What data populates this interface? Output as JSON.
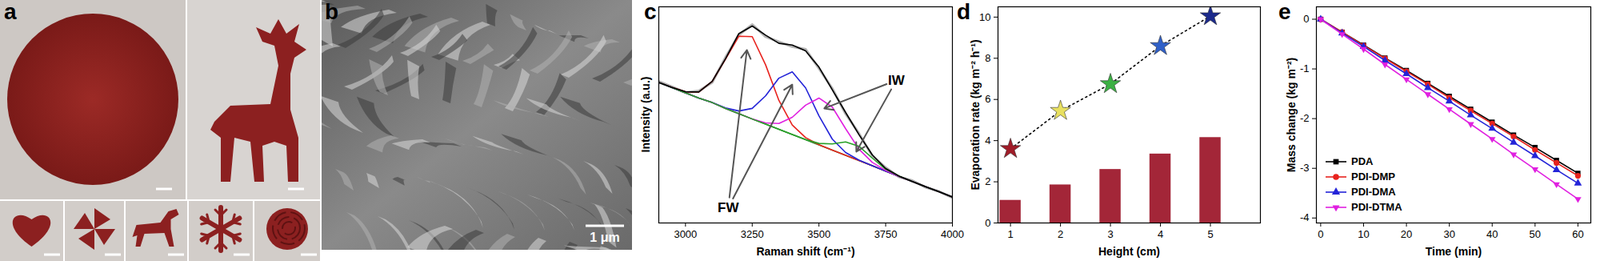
{
  "images": [
    {
      "title": "a"
    },
    {
      "title": "b",
      "scale_bar_label": "1 μm"
    }
  ],
  "chart_data": [
    {
      "title": "c",
      "type": "line",
      "x_label": "Raman shift (cm⁻¹)",
      "y_label": "Intensity (a.u.)",
      "x": [
        2900,
        2950,
        3000,
        3050,
        3100,
        3150,
        3200,
        3250,
        3300,
        3350,
        3400,
        3450,
        3500,
        3550,
        3600,
        3650,
        3700,
        3750,
        3800,
        3850,
        3900,
        3950,
        4000
      ],
      "xlim": [
        2900,
        4000
      ],
      "xticks": [
        3000,
        3250,
        3500,
        3750,
        4000
      ],
      "ylim": [
        0,
        1
      ],
      "tick_labels": "x",
      "series": [
        {
          "color": "#b3b3b3",
          "values": [
            0.655,
            0.63,
            0.603,
            0.611,
            0.65,
            0.766,
            0.87,
            0.918,
            0.862,
            0.838,
            0.816,
            0.803,
            0.715,
            0.622,
            0.505,
            0.414,
            0.31,
            0.256,
            0.213,
            0.196,
            0.165,
            0.146,
            0.117
          ]
        },
        {
          "color": "#2e8b2e",
          "values": [
            0.65,
            0.626,
            0.602,
            0.578,
            0.557,
            0.53,
            0.506,
            0.481,
            0.457,
            0.433,
            0.409,
            0.385,
            0.361,
            0.337,
            0.313,
            0.289,
            0.265,
            0.24,
            0.216,
            0.192,
            0.168,
            0.144,
            0.12
          ]
        },
        {
          "color": "#e8231e",
          "values": [
            0.65,
            0.627,
            0.607,
            0.606,
            0.655,
            0.758,
            0.864,
            0.862,
            0.732,
            0.567,
            0.453,
            0.395,
            0.362,
            0.337,
            0.313,
            0.289,
            0.265,
            0.24,
            0.216,
            0.192,
            0.168,
            0.144,
            0.12
          ]
        },
        {
          "color": "#2424d8",
          "values": [
            0.65,
            0.626,
            0.602,
            0.578,
            0.557,
            0.532,
            0.518,
            0.53,
            0.588,
            0.67,
            0.699,
            0.625,
            0.496,
            0.388,
            0.326,
            0.291,
            0.265,
            0.24,
            0.216,
            0.192,
            0.168,
            0.144,
            0.12
          ]
        },
        {
          "color": "#e020e0",
          "values": [
            0.65,
            0.626,
            0.602,
            0.578,
            0.557,
            0.53,
            0.506,
            0.481,
            0.463,
            0.46,
            0.489,
            0.545,
            0.578,
            0.536,
            0.436,
            0.341,
            0.28,
            0.243,
            0.216,
            0.192,
            0.168,
            0.144,
            0.12
          ]
        },
        {
          "color": "#28a028",
          "values": [
            0.65,
            0.626,
            0.602,
            0.578,
            0.557,
            0.53,
            0.506,
            0.481,
            0.457,
            0.433,
            0.409,
            0.386,
            0.368,
            0.366,
            0.375,
            0.355,
            0.3,
            0.249,
            0.217,
            0.192,
            0.168,
            0.144,
            0.12
          ]
        },
        {
          "color": "#000000",
          "values": [
            0.65,
            0.627,
            0.607,
            0.606,
            0.655,
            0.76,
            0.876,
            0.911,
            0.869,
            0.831,
            0.823,
            0.796,
            0.721,
            0.616,
            0.511,
            0.409,
            0.315,
            0.252,
            0.217,
            0.192,
            0.168,
            0.144,
            0.12
          ]
        }
      ],
      "annotations": [
        {
          "text": "FW",
          "x": 3160,
          "y": 0.07,
          "arrows": [
            {
              "x": 3230,
              "y": 0.8
            },
            {
              "x": 3400,
              "y": 0.64
            }
          ]
        },
        {
          "text": "IW",
          "x": 3790,
          "y": 0.66,
          "arrows": [
            {
              "x": 3520,
              "y": 0.53
            },
            {
              "x": 3640,
              "y": 0.33
            }
          ]
        }
      ]
    },
    {
      "title": "d",
      "type": "bar",
      "x_label": "Height (cm)",
      "y_label": "Evaporation rate (kg m⁻² h⁻¹)",
      "x": [
        1,
        2,
        3,
        4,
        5
      ],
      "xlim": [
        0.75,
        6
      ],
      "xticks": [
        1,
        2,
        3,
        4,
        5
      ],
      "ylim": [
        0,
        10.5
      ],
      "yticks": [
        0,
        2,
        4,
        6,
        8,
        10
      ],
      "series": [
        {
          "type": "bar",
          "color": "#a32638",
          "values": [
            1.1,
            1.85,
            2.6,
            3.35,
            4.15
          ]
        },
        {
          "type": "line",
          "marker": "star",
          "line_style": "dotted",
          "color": "#000000",
          "colors": [
            "#a01c28",
            "#e8e060",
            "#3cb043",
            "#3060c8",
            "#1c2a8c"
          ],
          "values": [
            3.6,
            5.45,
            6.75,
            8.6,
            10.05
          ]
        }
      ]
    },
    {
      "title": "e",
      "type": "line",
      "x_label": "Time (min)",
      "y_label": "Mass change (kg m⁻²)",
      "x": [
        0,
        5,
        10,
        15,
        20,
        25,
        30,
        35,
        40,
        45,
        50,
        55,
        60
      ],
      "xlim": [
        -1,
        63
      ],
      "xticks": [
        0,
        10,
        20,
        30,
        40,
        50,
        60
      ],
      "ylim": [
        -4.1,
        0.25
      ],
      "yticks": [
        -4,
        -3,
        -2,
        -1,
        0
      ],
      "legend": "lower left",
      "series": [
        {
          "name": "PDA",
          "color": "#000000",
          "marker": "square",
          "values": [
            0,
            -0.26,
            -0.52,
            -0.78,
            -1.03,
            -1.29,
            -1.55,
            -1.81,
            -2.07,
            -2.33,
            -2.58,
            -2.84,
            -3.1
          ]
        },
        {
          "name": "PDI-DMP",
          "color": "#e8231e",
          "marker": "circle",
          "values": [
            0,
            -0.26,
            -0.53,
            -0.79,
            -1.05,
            -1.31,
            -1.58,
            -1.84,
            -2.1,
            -2.36,
            -2.63,
            -2.89,
            -3.15
          ]
        },
        {
          "name": "PDI-DMA",
          "color": "#2424d8",
          "marker": "triangle",
          "values": [
            0,
            -0.28,
            -0.55,
            -0.83,
            -1.1,
            -1.38,
            -1.65,
            -1.93,
            -2.2,
            -2.48,
            -2.75,
            -3.03,
            -3.3
          ]
        },
        {
          "name": "PDI-DTMA",
          "color": "#e020e0",
          "marker": "triangle-down",
          "values": [
            0,
            -0.3,
            -0.6,
            -0.91,
            -1.21,
            -1.51,
            -1.81,
            -2.11,
            -2.41,
            -2.72,
            -3.02,
            -3.32,
            -3.62
          ]
        }
      ]
    }
  ]
}
